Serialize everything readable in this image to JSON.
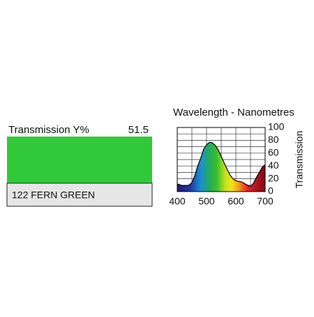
{
  "filter": {
    "transmission_label": "Transmission Y%",
    "transmission_value": 51.5,
    "swatch_color": "#31c93a",
    "name": "122 FERN GREEN"
  },
  "chart_data": {
    "type": "area",
    "title": "Wavelength - Nanometres",
    "y_label": "Transmission",
    "x": [
      400,
      420,
      440,
      450,
      460,
      470,
      480,
      490,
      500,
      510,
      520,
      530,
      540,
      550,
      560,
      570,
      580,
      590,
      600,
      620,
      640,
      650,
      660,
      670,
      680,
      690,
      700
    ],
    "values": [
      12,
      9,
      10,
      14,
      25,
      40,
      52,
      66,
      73,
      77,
      76,
      72,
      65,
      55,
      45,
      35,
      26,
      20,
      17,
      15,
      10,
      8,
      13,
      22,
      30,
      38,
      42
    ],
    "xlim": [
      400,
      700
    ],
    "ylim": [
      0,
      100
    ],
    "xticks": [
      400,
      500,
      600,
      700
    ],
    "yticks": [
      0,
      20,
      40,
      60,
      80,
      100
    ],
    "minor_xticks": [
      450,
      550,
      650
    ],
    "minor_yticks": [
      10,
      30,
      50,
      70,
      90
    ],
    "grid": true,
    "fill": "spectrum"
  }
}
